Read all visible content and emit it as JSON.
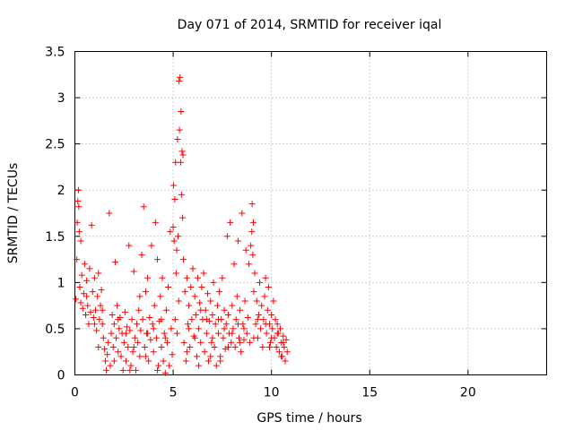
{
  "chart_data": {
    "type": "scatter",
    "title": "Day 071 of 2014, SRMTID for receiver iqal",
    "xlabel": "GPS time / hours",
    "ylabel": "SRMTID / TECUs",
    "xlim": [
      0,
      24
    ],
    "ylim": [
      0,
      3.5
    ],
    "xticks": [
      0,
      5,
      10,
      15,
      20
    ],
    "yticks": [
      0,
      0.5,
      1,
      1.5,
      2,
      2.5,
      3,
      3.5
    ],
    "xtick_labels": [
      "0",
      "5",
      "10",
      "15",
      "20"
    ],
    "ytick_labels": [
      "0",
      "0.5",
      "1",
      "1.5",
      "2",
      "2.5",
      "3",
      "3.5"
    ],
    "grid": true,
    "marker": "+",
    "series": [
      {
        "name": "SRMTID",
        "color": "#ff0000",
        "points": [
          [
            0.05,
            0.82
          ],
          [
            0.1,
            1.25
          ],
          [
            0.12,
            1.65
          ],
          [
            0.15,
            1.88
          ],
          [
            0.18,
            2.0
          ],
          [
            0.2,
            1.82
          ],
          [
            0.22,
            1.55
          ],
          [
            0.25,
            0.95
          ],
          [
            0.3,
            0.78
          ],
          [
            0.35,
            1.08
          ],
          [
            0.4,
            0.72
          ],
          [
            0.45,
            0.88
          ],
          [
            0.5,
            1.2
          ],
          [
            0.55,
            0.65
          ],
          [
            0.6,
            1.02
          ],
          [
            0.65,
            0.75
          ],
          [
            0.7,
            0.55
          ],
          [
            0.75,
            1.15
          ],
          [
            0.8,
            0.68
          ],
          [
            0.85,
            1.62
          ],
          [
            0.9,
            0.9
          ],
          [
            0.95,
            0.62
          ],
          [
            1.0,
            1.05
          ],
          [
            1.05,
            0.7
          ],
          [
            1.1,
            0.48
          ],
          [
            1.15,
            0.85
          ],
          [
            1.2,
            1.1
          ],
          [
            1.25,
            0.6
          ],
          [
            1.3,
            0.75
          ],
          [
            1.35,
            0.92
          ],
          [
            1.4,
            0.55
          ],
          [
            1.45,
            0.4
          ],
          [
            1.5,
            0.28
          ],
          [
            1.55,
            0.15
          ],
          [
            1.6,
            0.05
          ],
          [
            1.65,
            0.22
          ],
          [
            1.7,
            0.35
          ],
          [
            1.75,
            1.75
          ],
          [
            1.8,
            0.1
          ],
          [
            1.85,
            0.45
          ],
          [
            1.9,
            0.65
          ],
          [
            1.95,
            0.3
          ],
          [
            2.0,
            0.55
          ],
          [
            2.05,
            1.22
          ],
          [
            2.1,
            0.4
          ],
          [
            2.15,
            0.75
          ],
          [
            2.2,
            0.25
          ],
          [
            2.25,
            0.5
          ],
          [
            2.3,
            0.62
          ],
          [
            2.35,
            0.2
          ],
          [
            2.4,
            0.45
          ],
          [
            2.45,
            0.05
          ],
          [
            2.5,
            0.35
          ],
          [
            2.55,
            0.68
          ],
          [
            2.6,
            0.15
          ],
          [
            2.65,
            0.52
          ],
          [
            2.7,
            0.3
          ],
          [
            2.75,
            1.4
          ],
          [
            2.8,
            0.48
          ],
          [
            2.85,
            0.1
          ],
          [
            2.9,
            0.6
          ],
          [
            2.95,
            0.25
          ],
          [
            3.0,
            1.12
          ],
          [
            3.05,
            0.4
          ],
          [
            3.1,
            0.05
          ],
          [
            3.15,
            0.55
          ],
          [
            3.2,
            0.35
          ],
          [
            3.25,
            0.7
          ],
          [
            3.3,
            0.2
          ],
          [
            3.35,
            0.48
          ],
          [
            3.4,
            1.3
          ],
          [
            3.45,
            0.6
          ],
          [
            3.5,
            1.82
          ],
          [
            3.55,
            0.3
          ],
          [
            3.6,
            0.9
          ],
          [
            3.65,
            0.45
          ],
          [
            3.7,
            1.05
          ],
          [
            3.75,
            0.15
          ],
          [
            3.8,
            0.62
          ],
          [
            3.85,
            0.38
          ],
          [
            3.9,
            1.4
          ],
          [
            3.95,
            0.55
          ],
          [
            4.0,
            0.25
          ],
          [
            4.05,
            0.75
          ],
          [
            4.1,
            1.65
          ],
          [
            4.15,
            0.4
          ],
          [
            4.2,
            1.25
          ],
          [
            4.25,
            0.1
          ],
          [
            4.3,
            0.58
          ],
          [
            4.35,
            0.85
          ],
          [
            4.4,
            0.3
          ],
          [
            4.45,
            1.05
          ],
          [
            4.5,
            0.15
          ],
          [
            4.55,
            0.45
          ],
          [
            4.6,
            0.02
          ],
          [
            4.65,
            0.7
          ],
          [
            4.7,
            0.35
          ],
          [
            4.75,
            0.95
          ],
          [
            4.8,
            0.1
          ],
          [
            4.85,
            1.55
          ],
          [
            4.9,
            0.5
          ],
          [
            4.95,
            0.22
          ],
          [
            5.0,
            1.6
          ],
          [
            5.02,
            2.05
          ],
          [
            5.05,
            1.45
          ],
          [
            5.08,
            1.9
          ],
          [
            5.1,
            0.6
          ],
          [
            5.12,
            2.3
          ],
          [
            5.15,
            1.1
          ],
          [
            5.18,
            1.35
          ],
          [
            5.2,
            0.45
          ],
          [
            5.22,
            2.55
          ],
          [
            5.25,
            1.5
          ],
          [
            5.28,
            0.8
          ],
          [
            5.3,
            3.18
          ],
          [
            5.32,
            2.65
          ],
          [
            5.35,
            3.22
          ],
          [
            5.38,
            2.3
          ],
          [
            5.4,
            2.85
          ],
          [
            5.42,
            1.95
          ],
          [
            5.45,
            2.42
          ],
          [
            5.48,
            1.7
          ],
          [
            5.5,
            2.38
          ],
          [
            5.52,
            1.25
          ],
          [
            5.55,
            0.35
          ],
          [
            5.6,
            0.9
          ],
          [
            5.65,
            0.15
          ],
          [
            5.7,
            1.05
          ],
          [
            5.75,
            0.55
          ],
          [
            5.8,
            0.75
          ],
          [
            5.85,
            0.3
          ],
          [
            5.9,
            0.95
          ],
          [
            5.95,
            0.6
          ],
          [
            6.0,
            1.15
          ],
          [
            6.05,
            0.42
          ],
          [
            6.1,
            0.85
          ],
          [
            6.15,
            0.65
          ],
          [
            6.2,
            0.2
          ],
          [
            6.25,
            1.05
          ],
          [
            6.3,
            0.5
          ],
          [
            6.35,
            0.78
          ],
          [
            6.4,
            0.35
          ],
          [
            6.45,
            0.95
          ],
          [
            6.5,
            0.6
          ],
          [
            6.55,
            1.1
          ],
          [
            6.6,
            0.25
          ],
          [
            6.65,
            0.7
          ],
          [
            6.7,
            0.45
          ],
          [
            6.75,
            0.88
          ],
          [
            6.8,
            0.15
          ],
          [
            6.85,
            0.58
          ],
          [
            6.9,
            0.8
          ],
          [
            6.95,
            0.35
          ],
          [
            7.0,
            0.65
          ],
          [
            7.05,
            1.0
          ],
          [
            7.1,
            0.3
          ],
          [
            7.15,
            0.55
          ],
          [
            7.2,
            0.1
          ],
          [
            7.25,
            0.75
          ],
          [
            7.3,
            0.45
          ],
          [
            7.35,
            0.9
          ],
          [
            7.4,
            0.2
          ],
          [
            7.45,
            0.6
          ],
          [
            7.5,
            1.05
          ],
          [
            7.55,
            0.4
          ],
          [
            7.6,
            0.7
          ],
          [
            7.65,
            0.28
          ],
          [
            7.7,
            0.55
          ],
          [
            7.75,
            1.5
          ],
          [
            7.8,
            0.65
          ],
          [
            7.85,
            0.45
          ],
          [
            7.9,
            1.65
          ],
          [
            7.95,
            0.35
          ],
          [
            8.0,
            0.75
          ],
          [
            8.05,
            0.5
          ],
          [
            8.1,
            1.2
          ],
          [
            8.15,
            0.3
          ],
          [
            8.2,
            0.6
          ],
          [
            8.25,
            0.85
          ],
          [
            8.3,
            1.45
          ],
          [
            8.35,
            0.4
          ],
          [
            8.4,
            0.7
          ],
          [
            8.45,
            0.25
          ],
          [
            8.5,
            1.75
          ],
          [
            8.55,
            0.55
          ],
          [
            8.6,
            0.38
          ],
          [
            8.65,
            0.8
          ],
          [
            8.7,
            1.35
          ],
          [
            8.75,
            0.45
          ],
          [
            8.8,
            0.62
          ],
          [
            8.85,
            1.2
          ],
          [
            8.9,
            0.35
          ],
          [
            8.95,
            1.4
          ],
          [
            9.0,
            1.55
          ],
          [
            9.02,
            1.85
          ],
          [
            9.05,
            1.3
          ],
          [
            9.08,
            1.65
          ],
          [
            9.1,
            0.9
          ],
          [
            9.15,
            1.1
          ],
          [
            9.2,
            0.55
          ],
          [
            9.25,
            0.8
          ],
          [
            9.3,
            0.4
          ],
          [
            9.35,
            0.65
          ],
          [
            9.4,
            1.0
          ],
          [
            9.45,
            0.5
          ],
          [
            9.5,
            0.75
          ],
          [
            9.55,
            0.3
          ],
          [
            9.6,
            0.6
          ],
          [
            9.65,
            0.85
          ],
          [
            9.7,
            1.05
          ],
          [
            9.75,
            0.45
          ],
          [
            9.8,
            0.7
          ],
          [
            9.85,
            0.95
          ],
          [
            9.9,
            0.55
          ],
          [
            9.95,
            0.35
          ],
          [
            10.0,
            0.65
          ],
          [
            10.05,
            0.5
          ],
          [
            10.1,
            0.8
          ],
          [
            10.15,
            0.4
          ],
          [
            10.2,
            0.6
          ],
          [
            10.25,
            0.3
          ],
          [
            10.3,
            0.55
          ],
          [
            10.35,
            0.45
          ],
          [
            10.4,
            0.25
          ],
          [
            10.45,
            0.5
          ],
          [
            10.5,
            0.35
          ],
          [
            10.55,
            0.2
          ],
          [
            10.6,
            0.42
          ],
          [
            10.65,
            0.3
          ],
          [
            10.7,
            0.15
          ],
          [
            10.75,
            0.38
          ],
          [
            10.8,
            0.25
          ],
          [
            0.3,
            1.45
          ],
          [
            0.6,
            0.85
          ],
          [
            1.0,
            0.55
          ],
          [
            1.4,
            0.7
          ],
          [
            2.2,
            0.6
          ],
          [
            2.6,
            0.45
          ],
          [
            3.0,
            0.3
          ],
          [
            3.3,
            0.85
          ],
          [
            3.7,
            0.45
          ],
          [
            4.0,
            0.5
          ],
          [
            4.4,
            0.6
          ],
          [
            4.6,
            0.4
          ],
          [
            5.8,
            0.5
          ],
          [
            6.1,
            0.4
          ],
          [
            6.4,
            0.7
          ],
          [
            6.7,
            0.6
          ],
          [
            7.0,
            0.4
          ],
          [
            7.3,
            0.6
          ],
          [
            7.6,
            0.5
          ],
          [
            8.0,
            0.45
          ],
          [
            8.3,
            0.55
          ],
          [
            8.6,
            0.5
          ],
          [
            9.3,
            0.6
          ],
          [
            9.7,
            0.55
          ],
          [
            10.0,
            0.4
          ],
          [
            10.3,
            0.45
          ],
          [
            10.6,
            0.35
          ],
          [
            1.2,
            0.3
          ],
          [
            2.0,
            0.15
          ],
          [
            2.8,
            0.05
          ],
          [
            3.6,
            0.2
          ],
          [
            4.2,
            0.05
          ],
          [
            5.7,
            0.25
          ],
          [
            6.3,
            0.1
          ],
          [
            6.9,
            0.2
          ],
          [
            7.4,
            0.15
          ],
          [
            7.8,
            0.3
          ],
          [
            8.4,
            0.35
          ],
          [
            9.1,
            0.4
          ],
          [
            9.9,
            0.3
          ],
          [
            10.5,
            0.2
          ]
        ]
      }
    ]
  }
}
